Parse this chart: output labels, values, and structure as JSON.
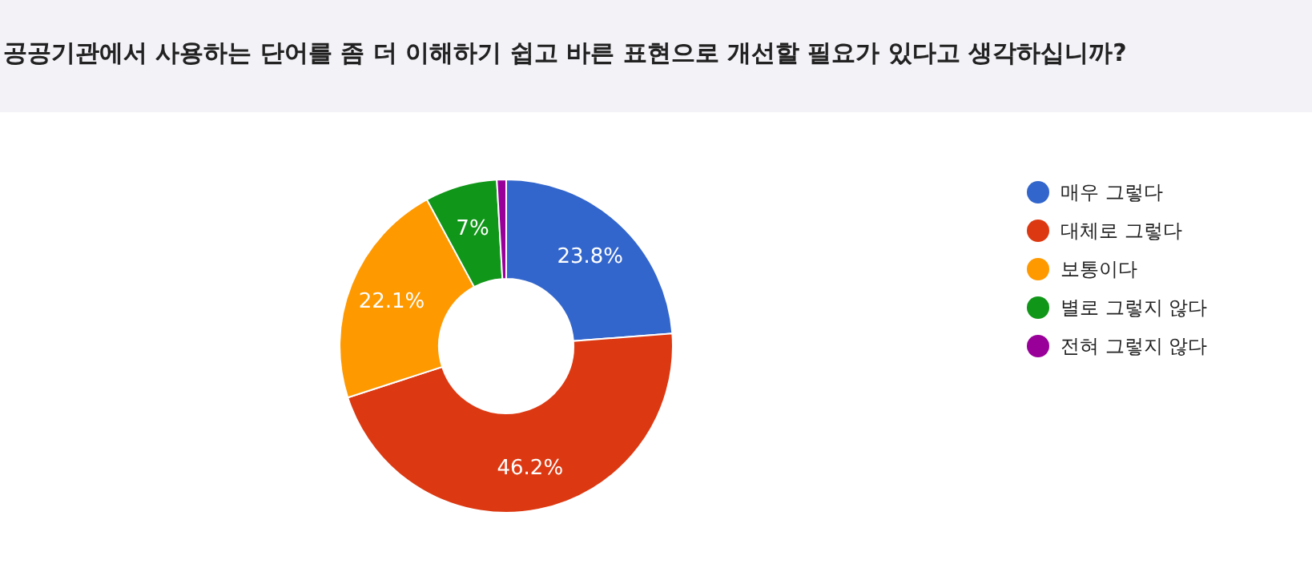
{
  "chart_data": {
    "type": "donut",
    "title": "공공기관에서 사용하는 단어를 좀 더 이해하기 쉽고 바른 표현으로 개선할 필요가 있다고 생각하십니까?",
    "categories": [
      "매우 그렇다",
      "대체로 그렇다",
      "보통이다",
      "별로 그렇지 않다",
      "전혀 그렇지 않다"
    ],
    "values": [
      23.8,
      46.2,
      22.1,
      7,
      0.9
    ],
    "colors": [
      "#3366cc",
      "#dc3912",
      "#ff9900",
      "#109618",
      "#990099"
    ],
    "value_labels": [
      "23.8%",
      "46.2%",
      "22.1%",
      "7%",
      null
    ],
    "legend": "right"
  }
}
